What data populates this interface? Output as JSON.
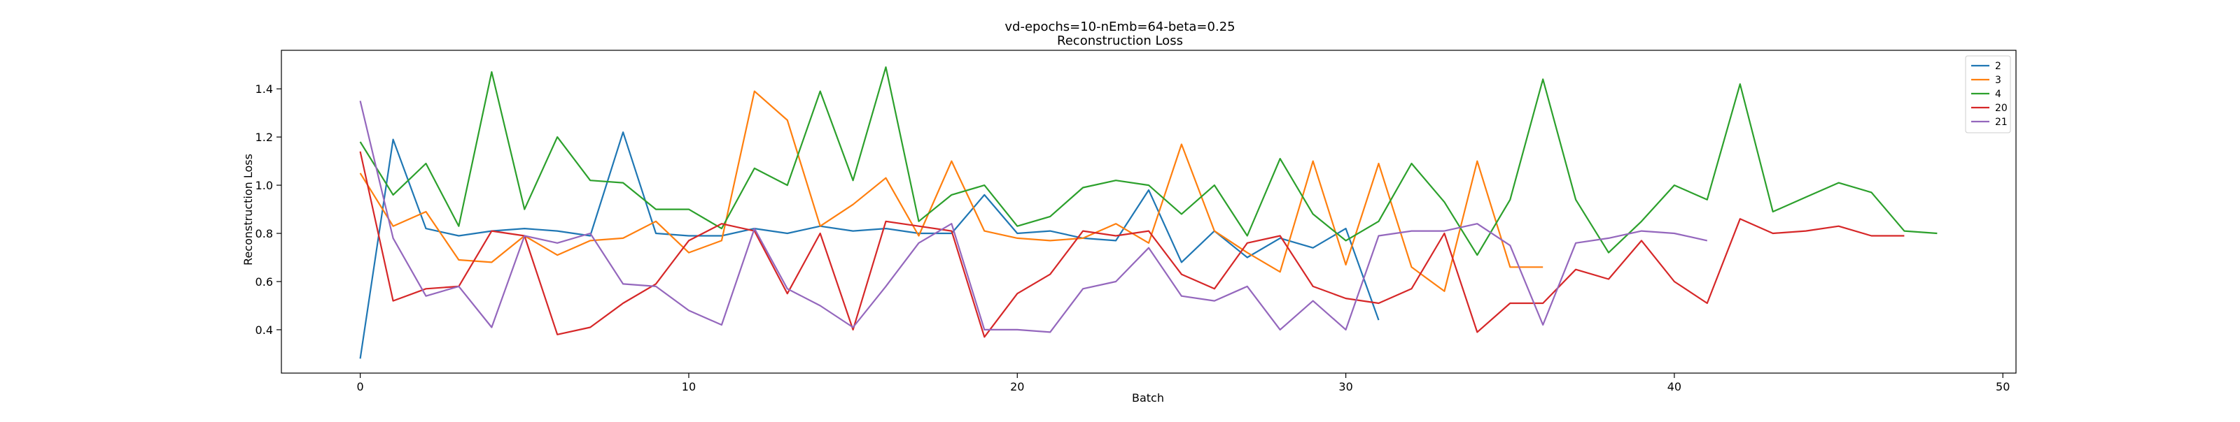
{
  "chart_data": {
    "type": "line",
    "title": "vd-epochs=10-nEmb=64-beta=0.25",
    "subtitle": "Reconstruction Loss",
    "xlabel": "Batch",
    "ylabel": "Reconstruction Loss",
    "xlim": [
      -2.4,
      50.4
    ],
    "ylim": [
      0.22,
      1.56
    ],
    "xticks": [
      0,
      10,
      20,
      30,
      40,
      50
    ],
    "yticks": [
      0.4,
      0.6,
      0.8,
      1.0,
      1.2,
      1.4
    ],
    "xtick_labels": [
      "0",
      "10",
      "20",
      "30",
      "40",
      "50"
    ],
    "ytick_labels": [
      "0.4",
      "0.6",
      "0.8",
      "1.0",
      "1.2",
      "1.4"
    ],
    "grid": false,
    "legend_position": "top-right",
    "series": [
      {
        "name": "2",
        "color": "#1f77b4",
        "values": [
          0.28,
          1.19,
          0.82,
          0.79,
          0.81,
          0.82,
          0.81,
          0.79,
          1.22,
          0.8,
          0.79,
          0.79,
          0.82,
          0.8,
          0.83,
          0.81,
          0.82,
          0.8,
          0.8,
          0.96,
          0.8,
          0.81,
          0.78,
          0.77,
          0.98,
          0.68,
          0.81,
          0.7,
          0.78,
          0.74,
          0.82,
          0.44
        ]
      },
      {
        "name": "3",
        "color": "#ff7f0e",
        "values": [
          1.05,
          0.83,
          0.89,
          0.69,
          0.68,
          0.79,
          0.71,
          0.77,
          0.78,
          0.85,
          0.72,
          0.77,
          1.39,
          1.27,
          0.83,
          0.92,
          1.03,
          0.79,
          1.1,
          0.81,
          0.78,
          0.77,
          0.78,
          0.84,
          0.76,
          1.17,
          0.81,
          0.72,
          0.64,
          1.1,
          0.67,
          1.09,
          0.66,
          0.56,
          1.1,
          0.66,
          0.66
        ]
      },
      {
        "name": "4",
        "color": "#2ca02c",
        "values": [
          1.18,
          0.96,
          1.09,
          0.83,
          1.47,
          0.9,
          1.2,
          1.02,
          1.01,
          0.9,
          0.9,
          0.82,
          1.07,
          1.0,
          1.39,
          1.02,
          1.49,
          0.85,
          0.96,
          1.0,
          0.83,
          0.87,
          0.99,
          1.02,
          1.0,
          0.88,
          1.0,
          0.79,
          1.11,
          0.88,
          0.77,
          0.85,
          1.09,
          0.93,
          0.71,
          0.94,
          1.44,
          0.94,
          0.72,
          0.85,
          1.0,
          0.94,
          1.42,
          0.89,
          0.95,
          1.01,
          0.97,
          0.81,
          0.8
        ]
      },
      {
        "name": "20",
        "color": "#d62728",
        "values": [
          1.14,
          0.52,
          0.57,
          0.58,
          0.81,
          0.79,
          0.38,
          0.41,
          0.51,
          0.59,
          0.77,
          0.84,
          0.81,
          0.55,
          0.8,
          0.4,
          0.85,
          0.83,
          0.81,
          0.37,
          0.55,
          0.63,
          0.81,
          0.79,
          0.81,
          0.63,
          0.57,
          0.76,
          0.79,
          0.58,
          0.53,
          0.51,
          0.57,
          0.8,
          0.39,
          0.51,
          0.51,
          0.65,
          0.61,
          0.77,
          0.6,
          0.51,
          0.86,
          0.8,
          0.81,
          0.83,
          0.79,
          0.79
        ]
      },
      {
        "name": "21",
        "color": "#9467bd",
        "values": [
          1.35,
          0.78,
          0.54,
          0.58,
          0.41,
          0.79,
          0.76,
          0.8,
          0.59,
          0.58,
          0.48,
          0.42,
          0.82,
          0.57,
          0.5,
          0.41,
          0.58,
          0.76,
          0.84,
          0.4,
          0.4,
          0.39,
          0.57,
          0.6,
          0.74,
          0.54,
          0.52,
          0.58,
          0.4,
          0.52,
          0.4,
          0.79,
          0.81,
          0.81,
          0.84,
          0.75,
          0.42,
          0.76,
          0.78,
          0.81,
          0.8,
          0.77
        ]
      }
    ]
  }
}
